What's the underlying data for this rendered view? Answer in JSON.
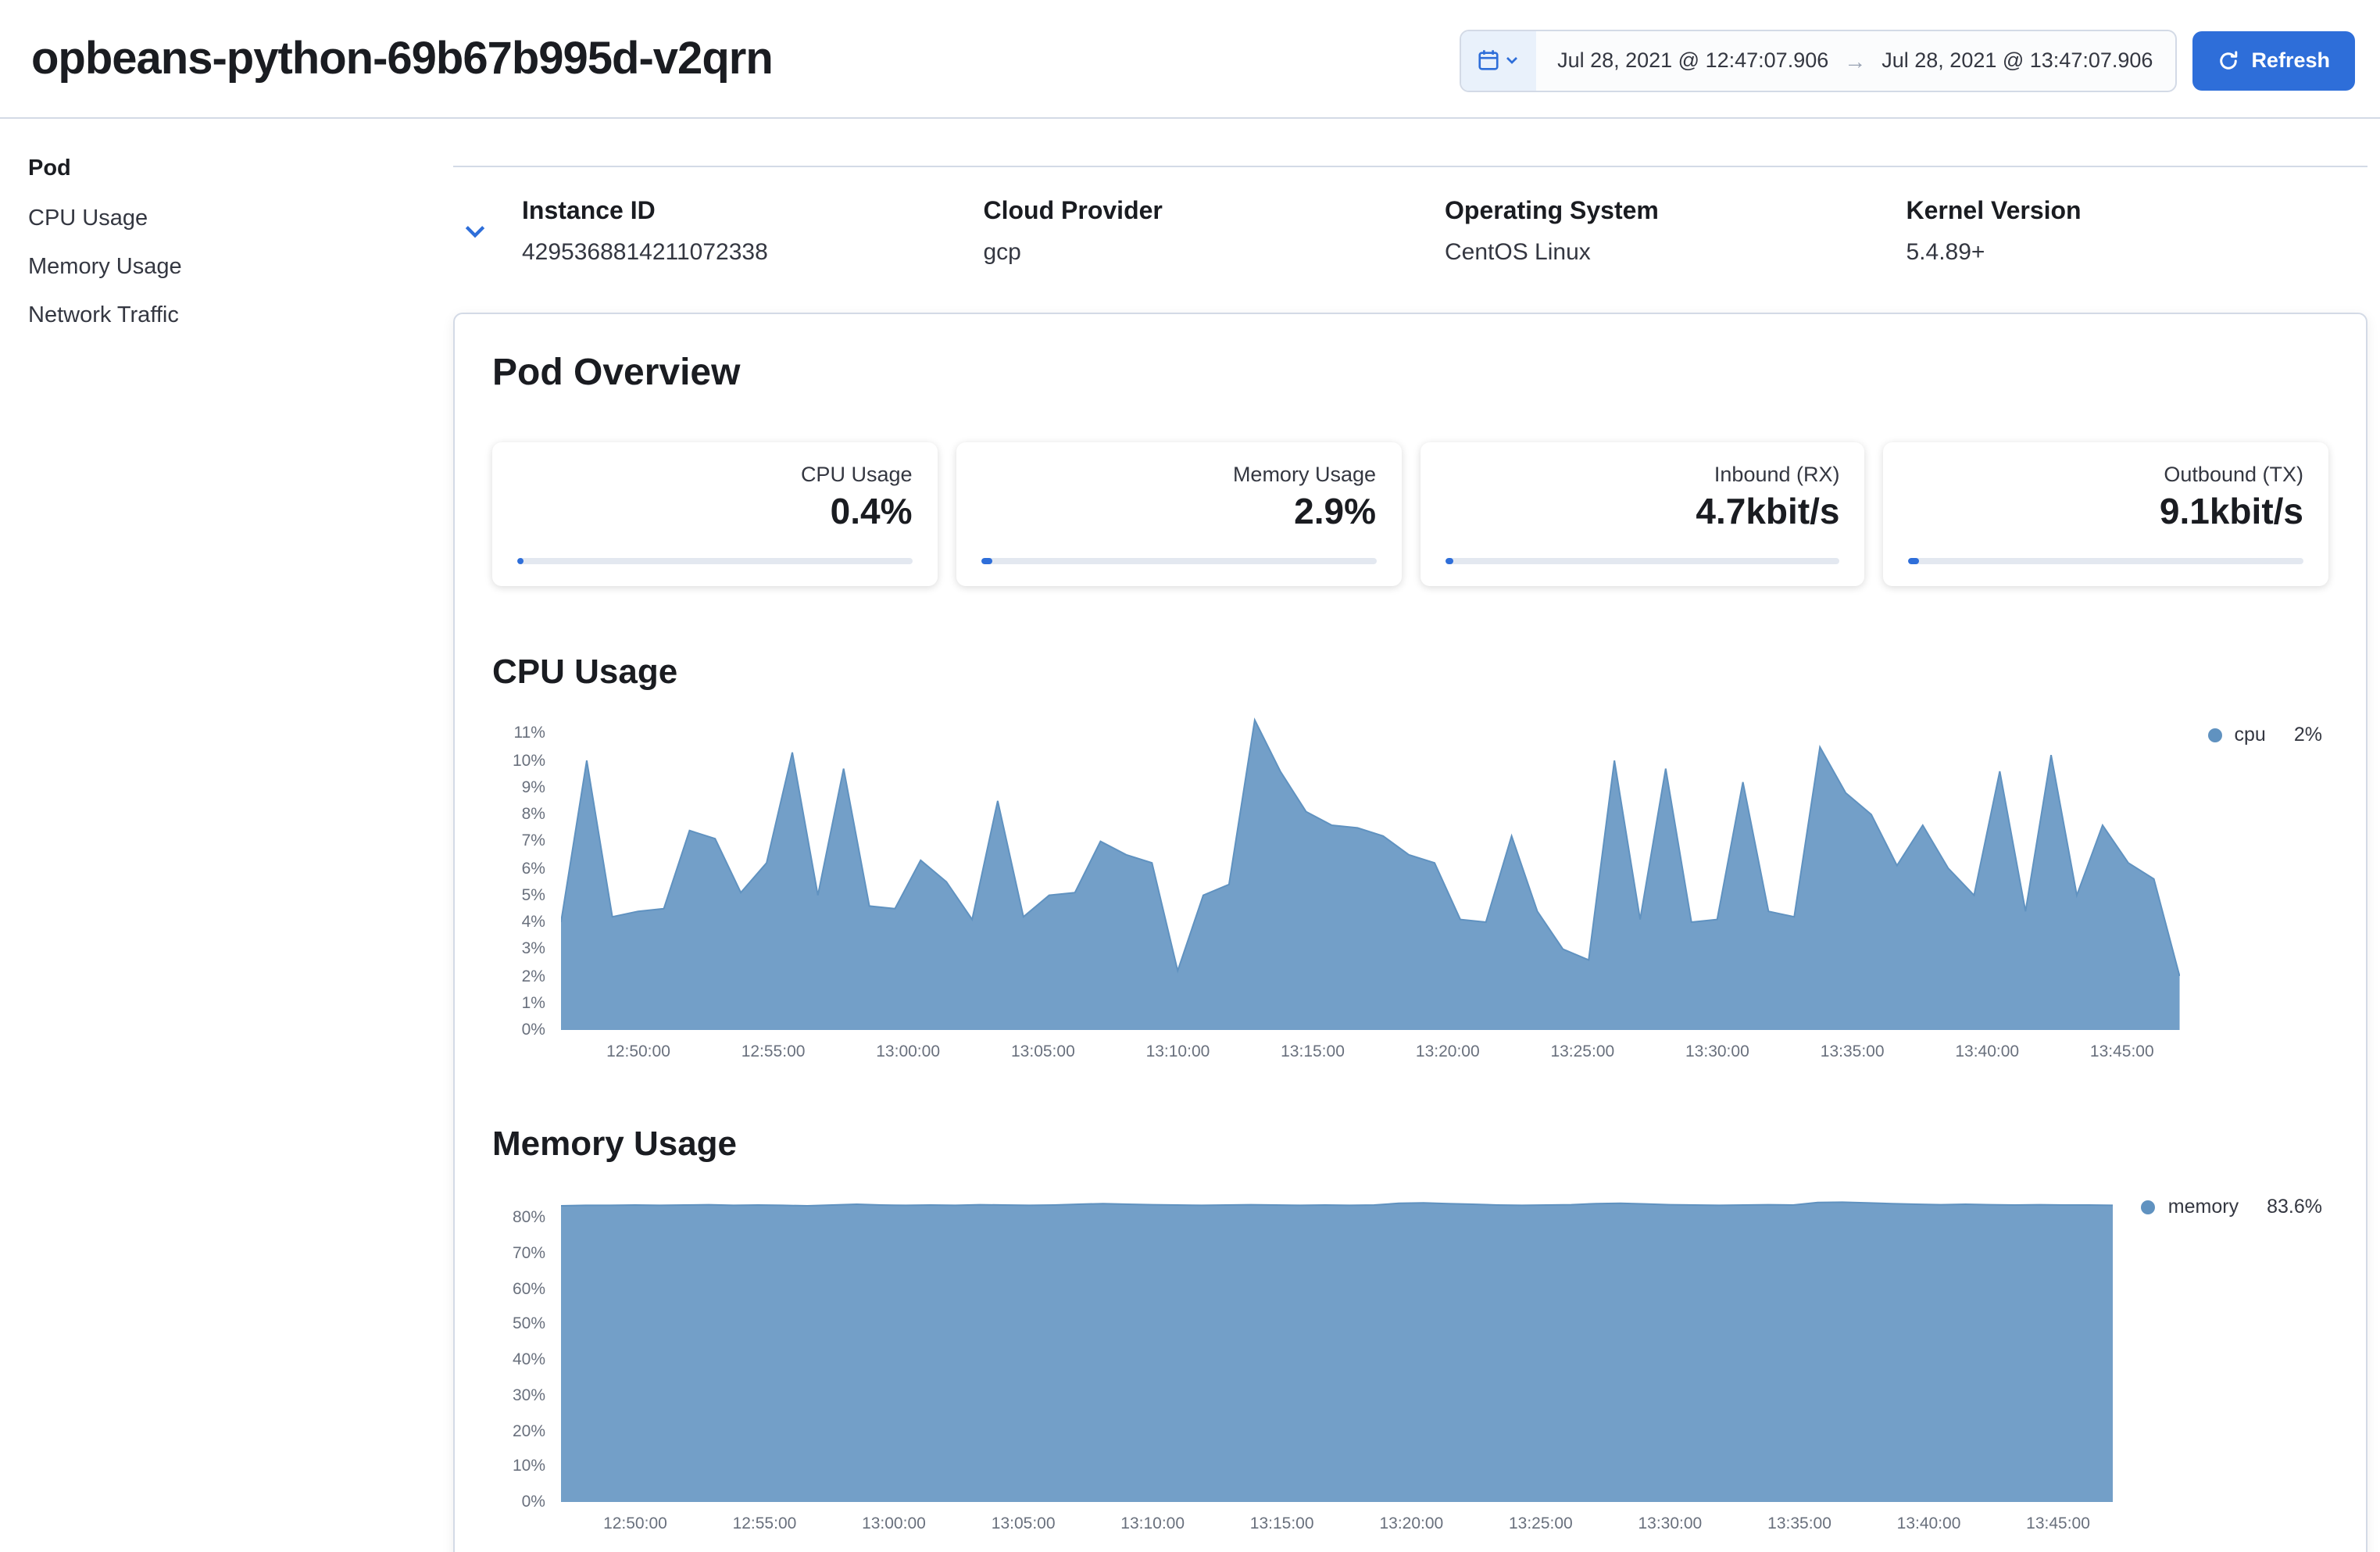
{
  "colors": {
    "primary": "#2e6ed9",
    "chart_area": "#6092c0",
    "border": "#d3dae6"
  },
  "header": {
    "title": "opbeans-python-69b67b995d-v2qrn",
    "date_picker": {
      "start": "Jul 28, 2021 @ 12:47:07.906",
      "arrow": "→",
      "end": "Jul 28, 2021 @ 13:47:07.906"
    },
    "refresh_label": "Refresh"
  },
  "sidebar": {
    "heading": "Pod",
    "items": [
      {
        "label": "CPU Usage"
      },
      {
        "label": "Memory Usage"
      },
      {
        "label": "Network Traffic"
      }
    ]
  },
  "metadata": {
    "fields": [
      {
        "label": "Instance ID",
        "value": "4295368814211072338"
      },
      {
        "label": "Cloud Provider",
        "value": "gcp"
      },
      {
        "label": "Operating System",
        "value": "CentOS Linux"
      },
      {
        "label": "Kernel Version",
        "value": "5.4.89+"
      }
    ]
  },
  "overview": {
    "title": "Pod Overview",
    "metric_cards": [
      {
        "label": "CPU Usage",
        "value": "0.4%",
        "bar_pct": 1.5
      },
      {
        "label": "Memory Usage",
        "value": "2.9%",
        "bar_pct": 3
      },
      {
        "label": "Inbound (RX)",
        "value": "4.7kbit/s",
        "bar_pct": 2
      },
      {
        "label": "Outbound (TX)",
        "value": "9.1kbit/s",
        "bar_pct": 2.5
      }
    ]
  },
  "chart_data": [
    {
      "type": "area",
      "title": "CPU Usage",
      "legend": {
        "label": "cpu",
        "value": "2%"
      },
      "color": "#6092c0",
      "x_domain": [
        "12:47:08",
        "13:47:08"
      ],
      "x_tick_labels": [
        "12:50:00",
        "12:55:00",
        "13:00:00",
        "13:05:00",
        "13:10:00",
        "13:15:00",
        "13:20:00",
        "13:25:00",
        "13:30:00",
        "13:35:00",
        "13:40:00",
        "13:45:00"
      ],
      "y_ticks": [
        0,
        1,
        2,
        3,
        4,
        5,
        6,
        7,
        8,
        9,
        10,
        11
      ],
      "y_tick_suffix": "%",
      "ylim": [
        0,
        11.6
      ],
      "values": [
        4.0,
        10.0,
        4.2,
        4.4,
        4.5,
        7.4,
        7.1,
        5.1,
        6.2,
        10.3,
        5.0,
        9.7,
        4.6,
        4.5,
        6.3,
        5.5,
        4.1,
        8.5,
        4.2,
        5.0,
        5.1,
        7.0,
        6.5,
        6.2,
        2.2,
        5.0,
        5.4,
        11.5,
        9.6,
        8.1,
        7.6,
        7.5,
        7.2,
        6.5,
        6.2,
        4.1,
        4.0,
        7.2,
        4.4,
        3.0,
        2.6,
        10.0,
        4.1,
        9.7,
        4.0,
        4.1,
        9.2,
        4.4,
        4.2,
        10.5,
        8.8,
        8.0,
        6.1,
        7.6,
        6.0,
        5.0,
        9.6,
        4.4,
        10.2,
        5.0,
        7.6,
        6.2,
        5.6,
        2.0
      ]
    },
    {
      "type": "area",
      "title": "Memory Usage",
      "legend": {
        "label": "memory",
        "value": "83.6%"
      },
      "color": "#6092c0",
      "x_domain": [
        "12:47:08",
        "13:47:08"
      ],
      "x_tick_labels": [
        "12:50:00",
        "12:55:00",
        "13:00:00",
        "13:05:00",
        "13:10:00",
        "13:15:00",
        "13:20:00",
        "13:25:00",
        "13:30:00",
        "13:35:00",
        "13:40:00",
        "13:45:00"
      ],
      "y_ticks": [
        0,
        10,
        20,
        30,
        40,
        50,
        60,
        70,
        80
      ],
      "y_tick_suffix": "%",
      "ylim": [
        0,
        88
      ],
      "values": [
        83.4,
        83.5,
        83.5,
        83.6,
        83.5,
        83.6,
        83.7,
        83.5,
        83.6,
        83.5,
        83.4,
        83.6,
        83.8,
        83.6,
        83.5,
        83.6,
        83.5,
        83.7,
        83.6,
        83.5,
        83.6,
        83.8,
        84.0,
        83.8,
        83.7,
        83.6,
        83.5,
        83.6,
        83.7,
        83.6,
        83.5,
        83.6,
        83.5,
        83.6,
        84.1,
        84.2,
        84.0,
        83.8,
        83.6,
        83.5,
        83.6,
        83.7,
        84.0,
        84.1,
        83.9,
        83.7,
        83.6,
        83.5,
        83.6,
        83.7,
        83.6,
        84.3,
        84.4,
        84.2,
        84.0,
        83.8,
        83.7,
        83.8,
        83.7,
        83.6,
        83.7,
        83.6,
        83.6,
        83.5
      ]
    }
  ]
}
